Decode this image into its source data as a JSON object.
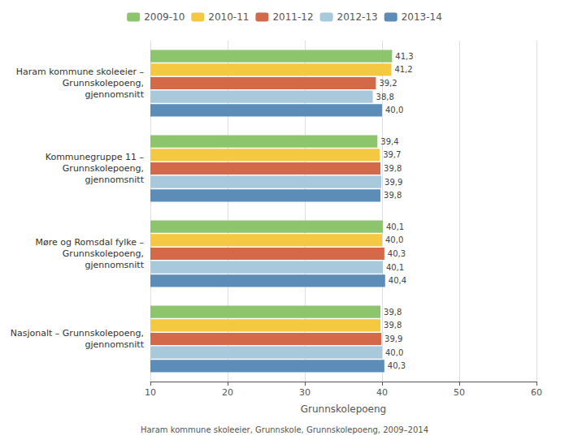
{
  "chart_data": {
    "type": "bar",
    "orientation": "horizontal",
    "categories": [
      "Haram kommune skoleeier –\nGrunnskolepoeng,\ngjennomsnitt",
      "Kommunegruppe 11 –\nGrunnskolepoeng,\ngjennomsnitt",
      "Møre og Romsdal fylke –\nGrunnskolepoeng,\ngjennomsnitt",
      "Nasjonalt – Grunnskolepoeng,\ngjennomsnitt"
    ],
    "series": [
      {
        "name": "2009-10",
        "color": "#8DC56C",
        "values": [
          41.3,
          39.4,
          40.1,
          39.8
        ],
        "value_labels": [
          "41,3",
          "39,4",
          "40,1",
          "39,8"
        ]
      },
      {
        "name": "2010-11",
        "color": "#F5C842",
        "values": [
          41.2,
          39.7,
          40.0,
          39.8
        ],
        "value_labels": [
          "41,2",
          "39,7",
          "40,0",
          "39,8"
        ]
      },
      {
        "name": "2011-12",
        "color": "#D4694A",
        "values": [
          39.2,
          39.8,
          40.3,
          39.9
        ],
        "value_labels": [
          "39,2",
          "39,8",
          "40,3",
          "39,9"
        ]
      },
      {
        "name": "2012-13",
        "color": "#A8C8DC",
        "values": [
          38.8,
          39.9,
          40.1,
          40.0
        ],
        "value_labels": [
          "38,8",
          "39,9",
          "40,1",
          "40,0"
        ]
      },
      {
        "name": "2013-14",
        "color": "#5B8DB8",
        "values": [
          40.0,
          39.8,
          40.4,
          40.3
        ],
        "value_labels": [
          "40,0",
          "39,8",
          "40,4",
          "40,3"
        ]
      }
    ],
    "xlabel": "Grunnskolepoeng",
    "xlim": [
      10,
      60
    ],
    "xticks": [
      10,
      20,
      30,
      40,
      50,
      60
    ],
    "annotations": [
      "Haram kommune skoleeier, Grunnskole, Grunnskolepoeng, 2009–2014"
    ],
    "grid": true,
    "legend": "top",
    "data_labels": true
  }
}
